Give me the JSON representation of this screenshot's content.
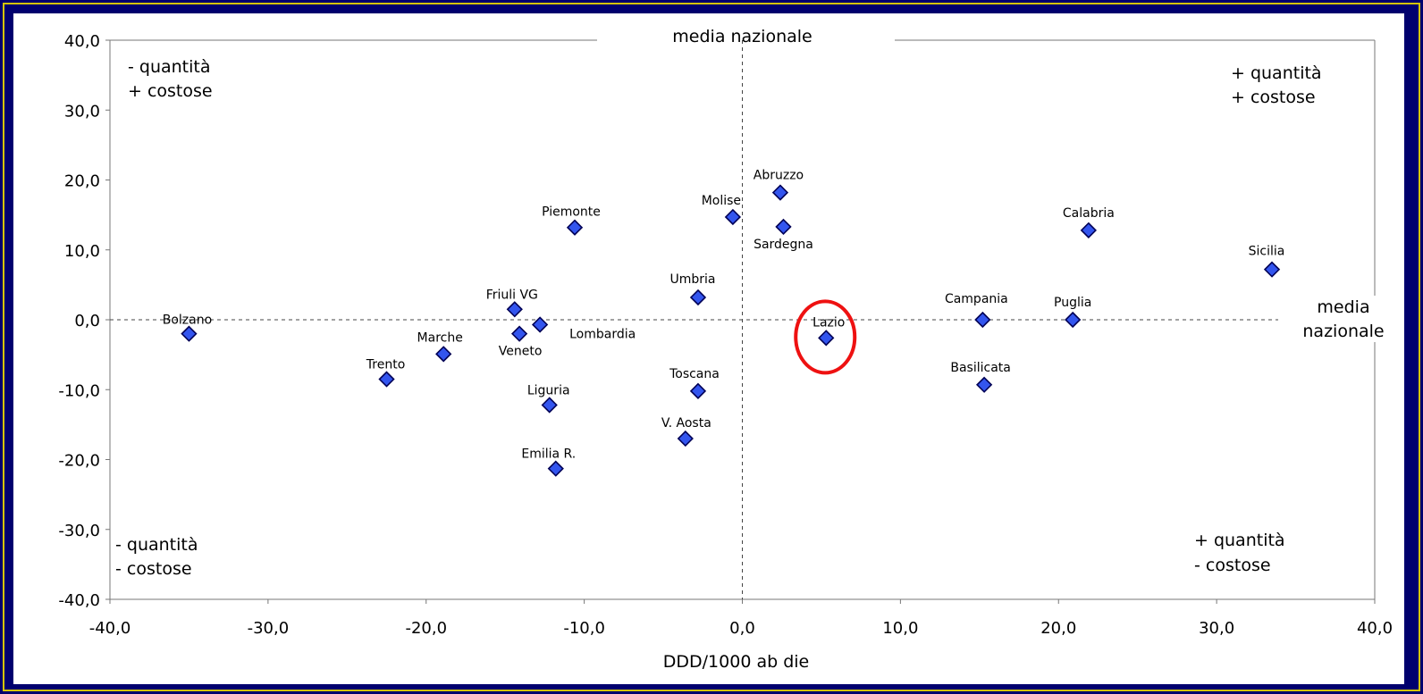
{
  "chart_data": {
    "type": "scatter",
    "title": "",
    "xlabel": "DDD/1000 ab die",
    "ylabel": "",
    "xlim": [
      -40,
      40
    ],
    "ylim": [
      -40,
      40
    ],
    "x_ticks": [
      "-40,0",
      "-30,0",
      "-20,0",
      "-10,0",
      "0,0",
      "10,0",
      "20,0",
      "30,0",
      "40,0"
    ],
    "y_ticks": [
      "40,0",
      "30,0",
      "20,0",
      "10,0",
      "0,0",
      "-10,0",
      "-20,0",
      "-30,0",
      "-40,0"
    ],
    "x_tick_values": [
      -40,
      -30,
      -20,
      -10,
      0,
      10,
      20,
      30,
      40
    ],
    "y_tick_values": [
      40,
      30,
      20,
      10,
      0,
      -10,
      -20,
      -30,
      -40
    ],
    "reference_lines": {
      "vertical_label": "media nazionale",
      "horizontal_label_line1": "media",
      "horizontal_label_line2": "nazionale"
    },
    "quadrant_labels": {
      "top_left": [
        "-  quantità",
        "+ costose"
      ],
      "top_right": [
        "+ quantità",
        "+ costose"
      ],
      "bottom_left": [
        "- quantità",
        "- costose"
      ],
      "bottom_right": [
        "+ quantità",
        "-  costose"
      ]
    },
    "highlighted_point": "Lazio",
    "marker_color": "#3355ee",
    "highlight_color": "#ee1111",
    "points": [
      {
        "name": "Bolzano",
        "x": -35.0,
        "y": -2.0
      },
      {
        "name": "Trento",
        "x": -22.5,
        "y": -8.5
      },
      {
        "name": "Marche",
        "x": -18.9,
        "y": -4.9
      },
      {
        "name": "Friuli VG",
        "x": -14.4,
        "y": 1.5
      },
      {
        "name": "Veneto",
        "x": -14.1,
        "y": -2.0
      },
      {
        "name": "Lombardia",
        "x": -12.8,
        "y": -0.7
      },
      {
        "name": "Liguria",
        "x": -12.2,
        "y": -12.2
      },
      {
        "name": "Emilia R.",
        "x": -11.8,
        "y": -21.3
      },
      {
        "name": "Piemonte",
        "x": -10.6,
        "y": 13.2
      },
      {
        "name": "V. Aosta",
        "x": -3.6,
        "y": -17.0
      },
      {
        "name": "Toscana",
        "x": -2.8,
        "y": -10.2
      },
      {
        "name": "Umbria",
        "x": -2.8,
        "y": 3.2
      },
      {
        "name": "Molise",
        "x": -0.6,
        "y": 14.7
      },
      {
        "name": "Abruzzo",
        "x": 2.4,
        "y": 18.2
      },
      {
        "name": "Sardegna",
        "x": 2.6,
        "y": 13.3
      },
      {
        "name": "Lazio",
        "x": 5.3,
        "y": -2.6
      },
      {
        "name": "Campania",
        "x": 15.2,
        "y": 0.0
      },
      {
        "name": "Basilicata",
        "x": 15.3,
        "y": -9.3
      },
      {
        "name": "Puglia",
        "x": 20.9,
        "y": 0.0
      },
      {
        "name": "Calabria",
        "x": 21.9,
        "y": 12.8
      },
      {
        "name": "Sicilia",
        "x": 33.5,
        "y": 7.2
      }
    ]
  }
}
